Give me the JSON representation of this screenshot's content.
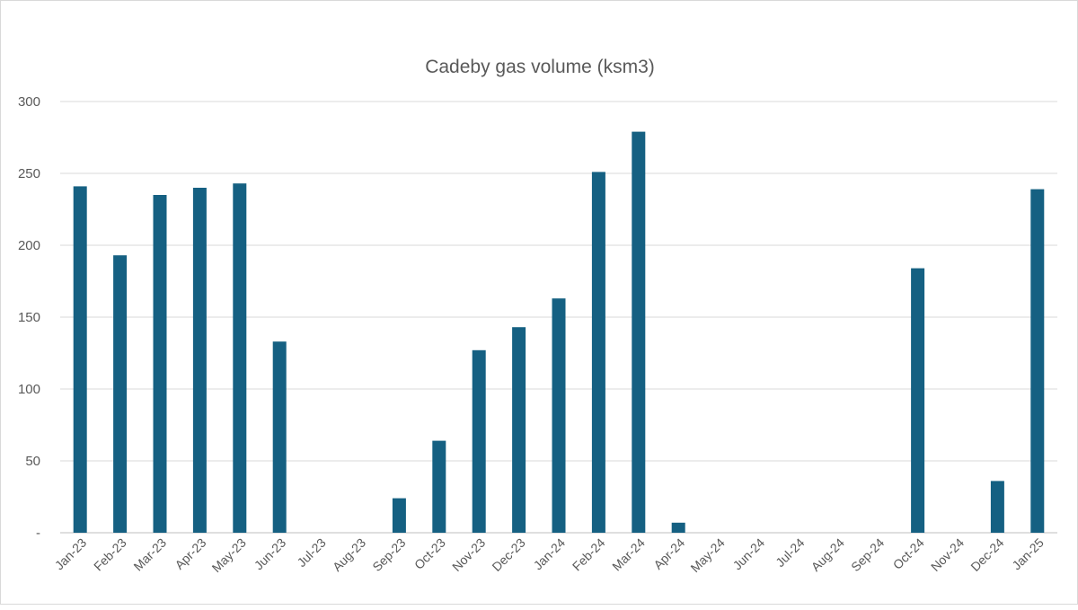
{
  "chart_data": {
    "type": "bar",
    "title": "Cadeby gas volume (ksm3)",
    "xlabel": "",
    "ylabel": "",
    "ylim": [
      0,
      300
    ],
    "yticks": [
      0,
      50,
      100,
      150,
      200,
      250,
      300
    ],
    "ytick_labels": [
      "-",
      "50",
      "100",
      "150",
      "200",
      "250",
      "300"
    ],
    "grid": true,
    "legend": "none",
    "bar_color": "#156082",
    "categories": [
      "Jan-23",
      "Feb-23",
      "Mar-23",
      "Apr-23",
      "May-23",
      "Jun-23",
      "Jul-23",
      "Aug-23",
      "Sep-23",
      "Oct-23",
      "Nov-23",
      "Dec-23",
      "Jan-24",
      "Feb-24",
      "Mar-24",
      "Apr-24",
      "May-24",
      "Jun-24",
      "Jul-24",
      "Aug-24",
      "Sep-24",
      "Oct-24",
      "Nov-24",
      "Dec-24",
      "Jan-25"
    ],
    "values": [
      241,
      193,
      235,
      240,
      243,
      133,
      0,
      0,
      24,
      64,
      127,
      143,
      163,
      251,
      279,
      7,
      0,
      0,
      0,
      0,
      0,
      184,
      0,
      36,
      239
    ]
  }
}
